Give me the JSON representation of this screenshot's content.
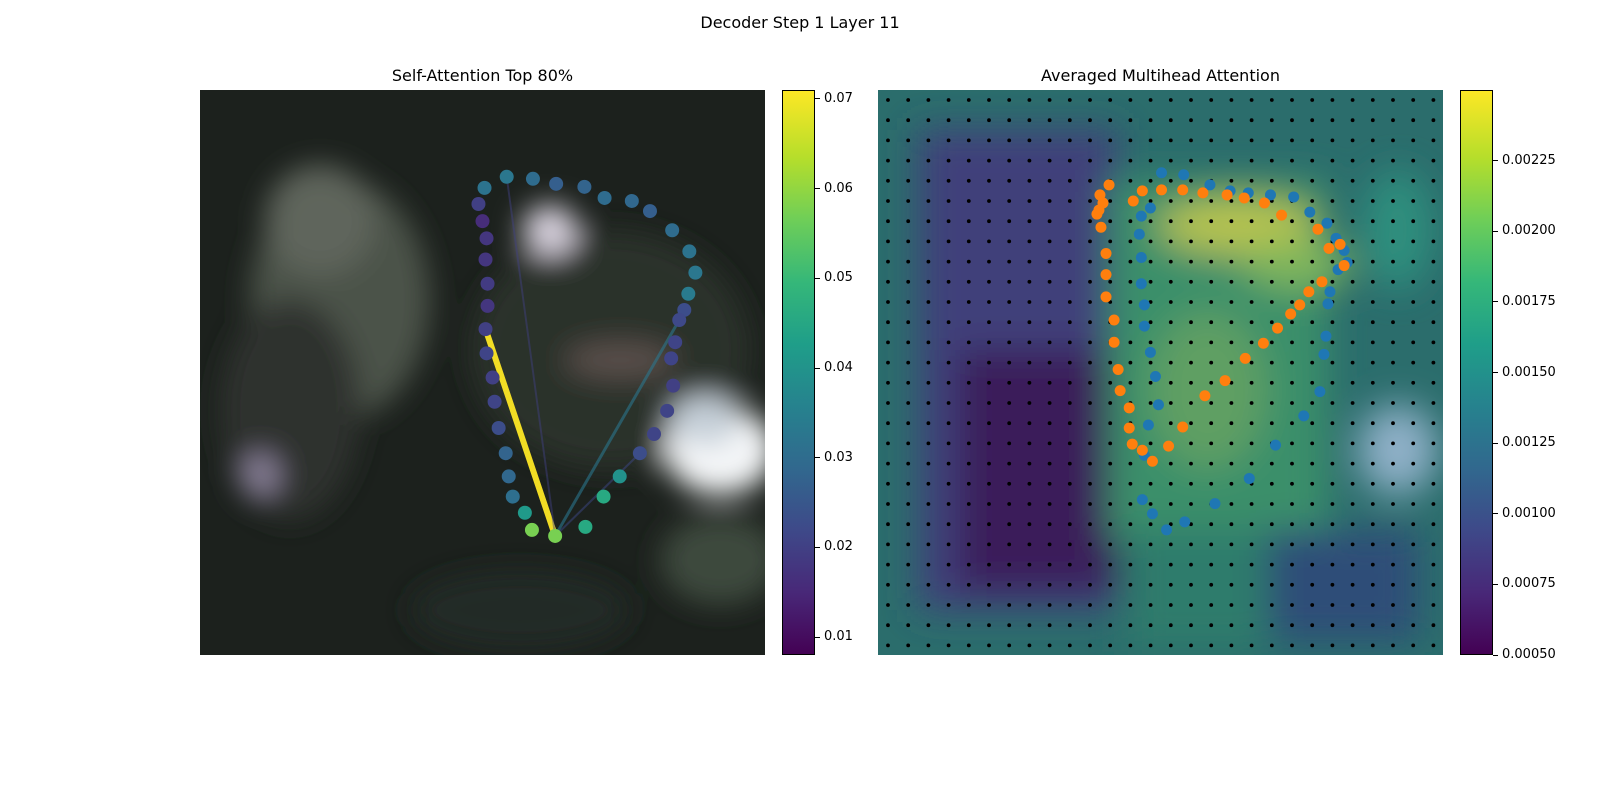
{
  "suptitle": "Decoder Step 1 Layer 11",
  "colors": {
    "viridis": [
      "#440154",
      "#482878",
      "#3e4989",
      "#31688e",
      "#26828e",
      "#1f9e89",
      "#35b779",
      "#6ece58",
      "#b5de2b",
      "#fde725"
    ],
    "tab_blue": "#1f77b4",
    "tab_orange": "#ff7f0e",
    "grid_dot": "#000000"
  },
  "chart_data": [
    {
      "type": "scatter",
      "title": "Self-Attention Top 80%",
      "background": "blurred dark photo",
      "colorbar": {
        "range": [
          0.008,
          0.071
        ],
        "ticks": [
          "0.01",
          "0.02",
          "0.03",
          "0.04",
          "0.05",
          "0.06",
          "0.07"
        ]
      },
      "source_point": [
        352,
        442
      ],
      "points": [
        [
          282,
          97,
          0.032
        ],
        [
          304,
          86,
          0.033
        ],
        [
          330,
          88,
          0.03
        ],
        [
          353,
          93,
          0.027
        ],
        [
          381,
          96,
          0.028
        ],
        [
          401,
          107,
          0.03
        ],
        [
          428,
          110,
          0.029
        ],
        [
          446,
          120,
          0.027
        ],
        [
          468,
          139,
          0.03
        ],
        [
          485,
          160,
          0.032
        ],
        [
          491,
          181,
          0.033
        ],
        [
          484,
          202,
          0.034
        ],
        [
          480,
          218,
          0.023
        ],
        [
          475,
          228,
          0.022
        ],
        [
          471,
          250,
          0.021
        ],
        [
          467,
          266,
          0.021
        ],
        [
          469,
          293,
          0.02
        ],
        [
          463,
          318,
          0.021
        ],
        [
          450,
          341,
          0.021
        ],
        [
          436,
          360,
          0.023
        ],
        [
          416,
          383,
          0.04
        ],
        [
          400,
          403,
          0.046
        ],
        [
          382,
          433,
          0.046
        ],
        [
          352,
          442,
          0.058
        ],
        [
          329,
          436,
          0.058
        ],
        [
          322,
          419,
          0.042
        ],
        [
          310,
          403,
          0.031
        ],
        [
          306,
          383,
          0.029
        ],
        [
          303,
          360,
          0.028
        ],
        [
          296,
          335,
          0.023
        ],
        [
          292,
          309,
          0.021
        ],
        [
          290,
          285,
          0.02
        ],
        [
          284,
          261,
          0.021
        ],
        [
          283,
          237,
          0.02
        ],
        [
          285,
          214,
          0.018
        ],
        [
          285,
          192,
          0.019
        ],
        [
          283,
          168,
          0.018
        ],
        [
          284,
          147,
          0.018
        ],
        [
          280,
          130,
          0.016
        ],
        [
          276,
          113,
          0.02
        ]
      ],
      "lines": [
        {
          "from": [
            352,
            442
          ],
          "to": [
            283,
            237
          ],
          "weight": 0.071
        },
        {
          "from": [
            352,
            442
          ],
          "to": [
            475,
            228
          ],
          "weight": 0.033
        },
        {
          "from": [
            352,
            442
          ],
          "to": [
            304,
            86
          ],
          "weight": 0.02
        },
        {
          "from": [
            352,
            442
          ],
          "to": [
            436,
            360
          ],
          "weight": 0.022
        }
      ]
    },
    {
      "type": "heatmap",
      "title": "Averaged Multihead Attention",
      "grid": true,
      "colorbar": {
        "range": [
          0.0005,
          0.0025
        ],
        "ticks": [
          "0.00050",
          "0.00075",
          "0.00100",
          "0.00125",
          "0.00150",
          "0.00175",
          "0.00200",
          "0.00225"
        ]
      },
      "blue_points": [
        [
          281,
          82
        ],
        [
          303,
          84
        ],
        [
          329,
          94
        ],
        [
          349,
          100
        ],
        [
          367,
          102
        ],
        [
          389,
          104
        ],
        [
          412,
          106
        ],
        [
          428,
          121
        ],
        [
          445,
          132
        ],
        [
          454,
          147
        ],
        [
          462,
          159
        ],
        [
          465,
          171
        ],
        [
          456,
          178
        ],
        [
          448,
          200
        ],
        [
          446,
          212
        ],
        [
          444,
          244
        ],
        [
          442,
          262
        ],
        [
          438,
          299
        ],
        [
          422,
          323
        ],
        [
          394,
          352
        ],
        [
          368,
          385
        ],
        [
          334,
          410
        ],
        [
          304,
          428
        ],
        [
          286,
          436
        ],
        [
          272,
          420
        ],
        [
          262,
          406
        ],
        [
          264,
          362
        ],
        [
          268,
          332
        ],
        [
          278,
          312
        ],
        [
          275,
          284
        ],
        [
          270,
          260
        ],
        [
          264,
          234
        ],
        [
          264,
          213
        ],
        [
          261,
          192
        ],
        [
          261,
          166
        ],
        [
          259,
          143
        ],
        [
          261,
          125
        ],
        [
          270,
          117
        ]
      ],
      "orange_points": [
        [
          253,
          110
        ],
        [
          262,
          100
        ],
        [
          281,
          99
        ],
        [
          302,
          99
        ],
        [
          322,
          102
        ],
        [
          346,
          104
        ],
        [
          363,
          107
        ],
        [
          383,
          112
        ],
        [
          400,
          124
        ],
        [
          436,
          138
        ],
        [
          447,
          157
        ],
        [
          458,
          153
        ],
        [
          462,
          174
        ],
        [
          440,
          190
        ],
        [
          427,
          200
        ],
        [
          418,
          213
        ],
        [
          409,
          222
        ],
        [
          396,
          236
        ],
        [
          382,
          251
        ],
        [
          364,
          266
        ],
        [
          344,
          288
        ],
        [
          324,
          303
        ],
        [
          302,
          334
        ],
        [
          288,
          353
        ],
        [
          272,
          368
        ],
        [
          262,
          357
        ],
        [
          252,
          351
        ],
        [
          249,
          335
        ],
        [
          249,
          315
        ],
        [
          240,
          298
        ],
        [
          238,
          277
        ],
        [
          234,
          250
        ],
        [
          234,
          228
        ],
        [
          226,
          205
        ],
        [
          226,
          183
        ],
        [
          226,
          162
        ],
        [
          221,
          136
        ],
        [
          223,
          112
        ],
        [
          219,
          119
        ],
        [
          217,
          123
        ],
        [
          220,
          104
        ],
        [
          229,
          94
        ]
      ]
    }
  ]
}
